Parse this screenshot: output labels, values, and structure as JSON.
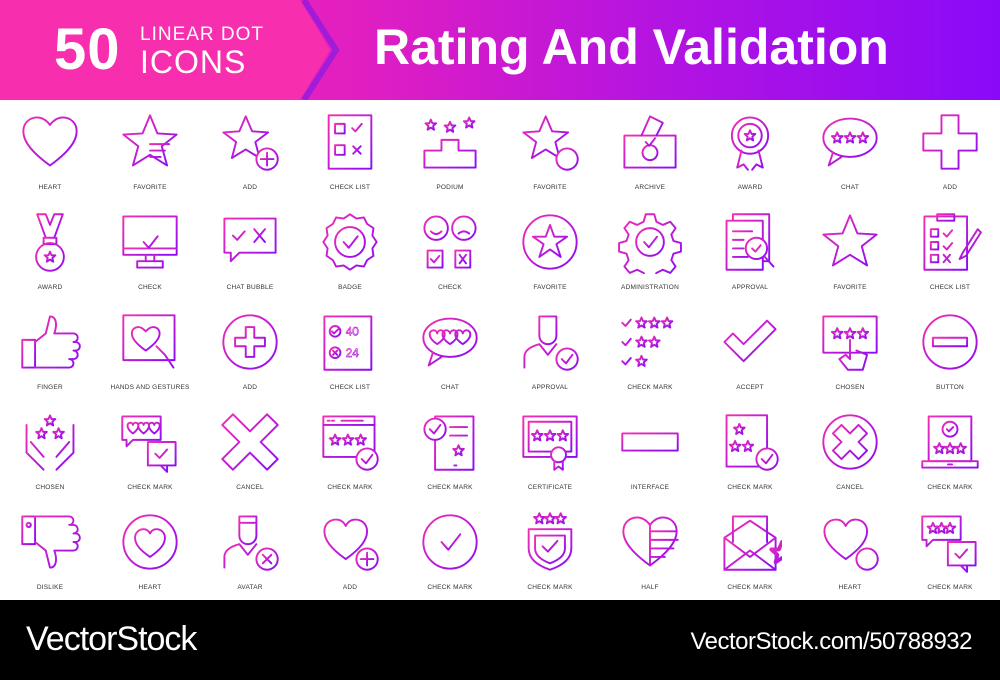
{
  "header": {
    "count": "50",
    "subtitle_line1": "LINEAR DOT",
    "subtitle_line2": "ICONS",
    "title": "Rating And Validation"
  },
  "colors": {
    "gradient_start": "#f42fb0",
    "gradient_end": "#8a0af8",
    "footer": "#000000"
  },
  "icons": [
    {
      "label": "HEART",
      "icon": "heart"
    },
    {
      "label": "FAVORITE",
      "icon": "star-striped"
    },
    {
      "label": "ADD",
      "icon": "star-plus"
    },
    {
      "label": "CHECK LIST",
      "icon": "checklist-doc"
    },
    {
      "label": "PODIUM",
      "icon": "podium"
    },
    {
      "label": "FAVORITE",
      "icon": "star-minus"
    },
    {
      "label": "ARCHIVE",
      "icon": "ballot-box"
    },
    {
      "label": "AWARD",
      "icon": "rosette"
    },
    {
      "label": "CHAT",
      "icon": "chat-stars"
    },
    {
      "label": "ADD",
      "icon": "plus"
    },
    {
      "label": "AWARD",
      "icon": "medal"
    },
    {
      "label": "CHECK",
      "icon": "monitor-check"
    },
    {
      "label": "CHAT BUBBLE",
      "icon": "chat-check-x"
    },
    {
      "label": "BADGE",
      "icon": "seal-check"
    },
    {
      "label": "CHECK",
      "icon": "emoji-check"
    },
    {
      "label": "FAVORITE",
      "icon": "circle-star"
    },
    {
      "label": "ADMINISTRATION",
      "icon": "gear-check"
    },
    {
      "label": "APPROVAL",
      "icon": "doc-magnifier"
    },
    {
      "label": "FAVORITE",
      "icon": "star"
    },
    {
      "label": "CHECK LIST",
      "icon": "clipboard-pencil"
    },
    {
      "label": "FINGER",
      "icon": "thumbs-up"
    },
    {
      "label": "HANDS AND GESTURES",
      "icon": "browser-heart"
    },
    {
      "label": "ADD",
      "icon": "circle-plus"
    },
    {
      "label": "CHECK LIST",
      "icon": "doc-scores"
    },
    {
      "label": "CHAT",
      "icon": "chat-hearts"
    },
    {
      "label": "APPROVAL",
      "icon": "person-check"
    },
    {
      "label": "CHECK MARK",
      "icon": "stars-list"
    },
    {
      "label": "ACCEPT",
      "icon": "check"
    },
    {
      "label": "CHOSEN",
      "icon": "screen-stars"
    },
    {
      "label": "BUTTON",
      "icon": "circle-minus"
    },
    {
      "label": "CHOSEN",
      "icon": "hands-stars"
    },
    {
      "label": "CHECK MARK",
      "icon": "chat-hearts-check"
    },
    {
      "label": "CANCEL",
      "icon": "big-x"
    },
    {
      "label": "CHECK MARK",
      "icon": "browser-stars-check"
    },
    {
      "label": "CHECK MARK",
      "icon": "tablet-check-star"
    },
    {
      "label": "CERTIFICATE",
      "icon": "certificate"
    },
    {
      "label": "INTERFACE",
      "icon": "bar"
    },
    {
      "label": "CHECK MARK",
      "icon": "doc-stars-check"
    },
    {
      "label": "CANCEL",
      "icon": "circle-x"
    },
    {
      "label": "CHECK MARK",
      "icon": "laptop-check"
    },
    {
      "label": "DISLIKE",
      "icon": "thumbs-down"
    },
    {
      "label": "HEART",
      "icon": "circle-heart"
    },
    {
      "label": "AVATAR",
      "icon": "person-x"
    },
    {
      "label": "ADD",
      "icon": "heart-plus"
    },
    {
      "label": "CHECK MARK",
      "icon": "circle-check"
    },
    {
      "label": "CHECK MARK",
      "icon": "shield-check"
    },
    {
      "label": "HALF",
      "icon": "half-heart"
    },
    {
      "label": "CHECK MARK",
      "icon": "envelope-star"
    },
    {
      "label": "HEART",
      "icon": "heart-minus"
    },
    {
      "label": "CHECK MARK",
      "icon": "chat-stars-check"
    }
  ],
  "footer": {
    "brand": "VectorStock",
    "stock_id": "VectorStock.com/50788932"
  }
}
